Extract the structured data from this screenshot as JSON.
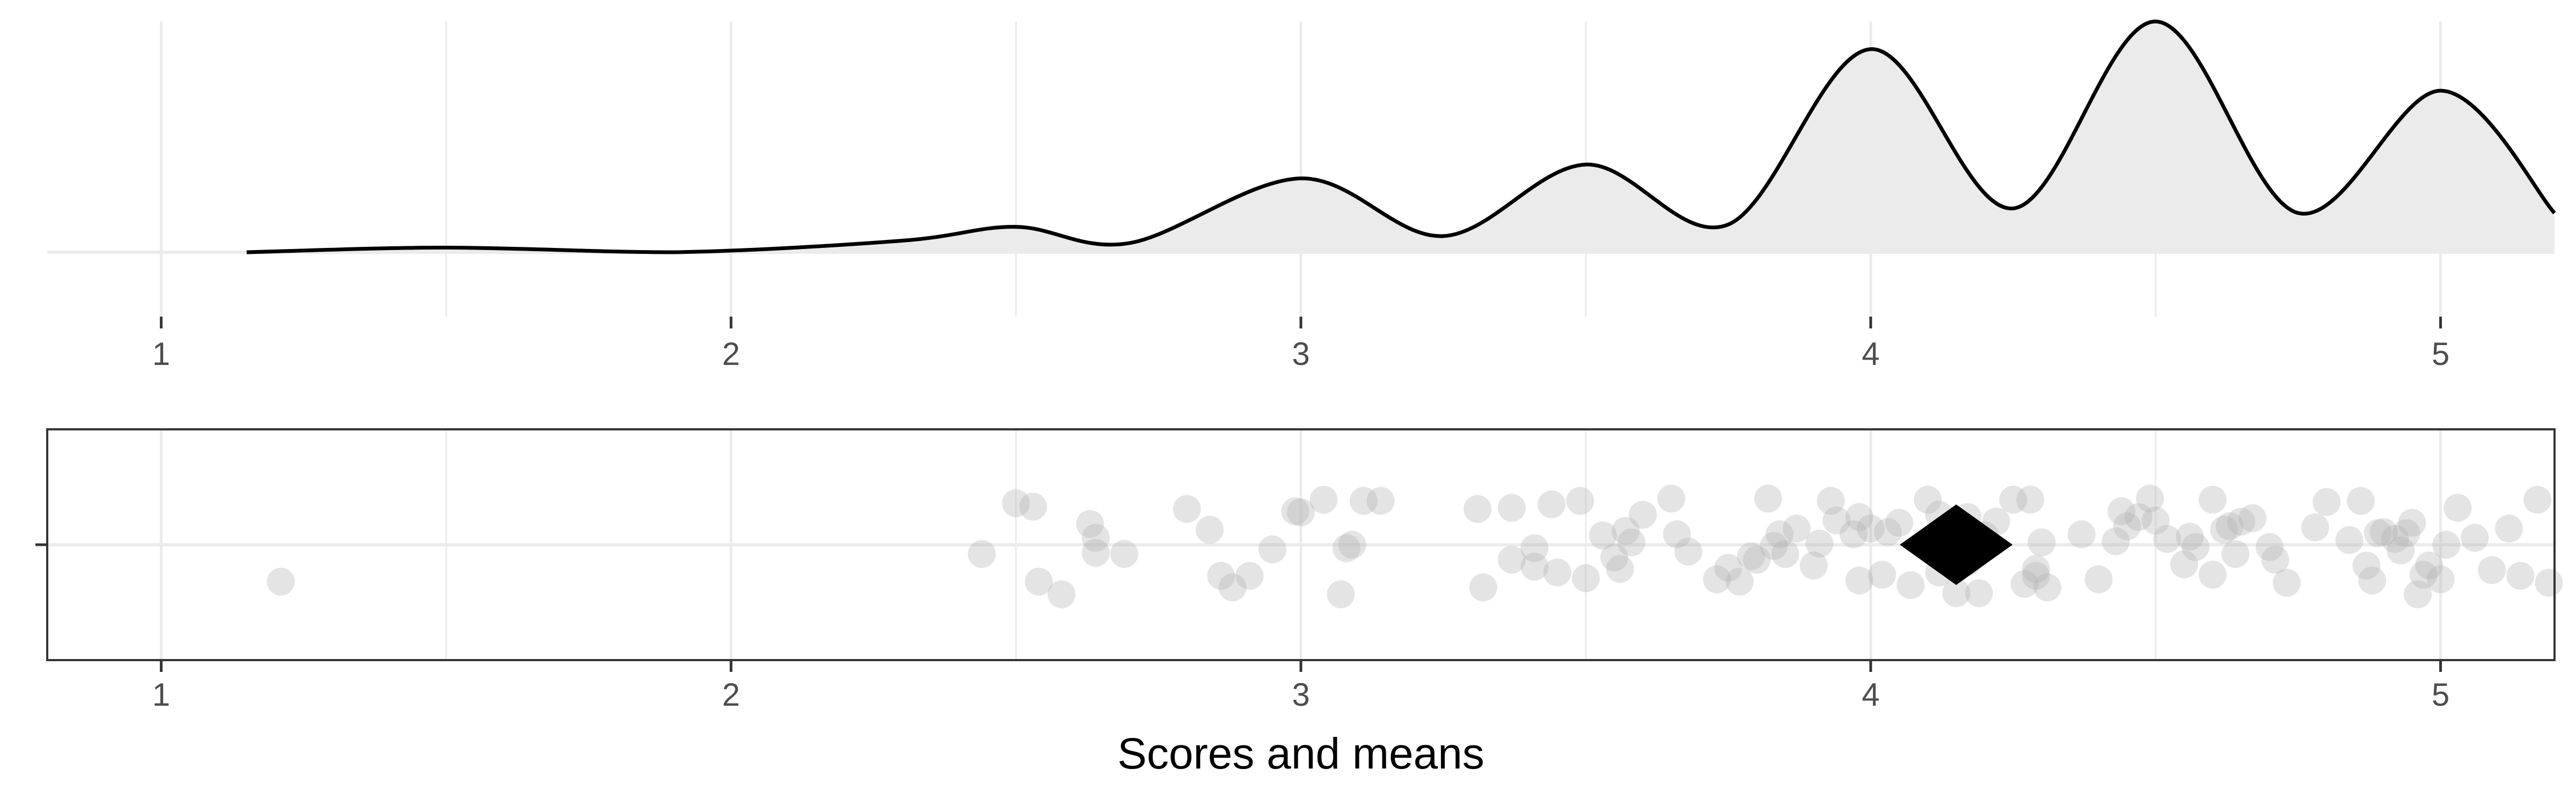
{
  "chart_data": [
    {
      "type": "area",
      "description_kind": "density",
      "xlim": [
        0.8,
        5.2
      ],
      "x_ticks": [
        1,
        2,
        3,
        4,
        5
      ],
      "x_tick_labels": [
        "1",
        "2",
        "3",
        "4",
        "5"
      ],
      "grid": true,
      "density_curve": {
        "x": [
          1.15,
          1.5,
          1.9,
          2.3,
          2.5,
          2.7,
          3.0,
          3.25,
          3.5,
          3.75,
          4.0,
          4.25,
          4.5,
          4.75,
          5.0,
          5.2
        ],
        "y": [
          0.0,
          0.02,
          0.0,
          0.05,
          0.11,
          0.04,
          0.32,
          0.07,
          0.38,
          0.12,
          0.88,
          0.19,
          1.0,
          0.17,
          0.7,
          0.17
        ]
      },
      "fill_color": "#ebebeb",
      "line_color": "#000000"
    },
    {
      "type": "scatter",
      "xlim": [
        0.8,
        5.2
      ],
      "x_ticks": [
        1,
        2,
        3,
        4,
        5
      ],
      "x_tick_labels": [
        "1",
        "2",
        "3",
        "4",
        "5"
      ],
      "xlabel": "Scores and means",
      "grid": true,
      "point_color": "#b3b3b3",
      "x_values": [
        1.21,
        2.44,
        2.5,
        2.54,
        2.53,
        2.58,
        2.63,
        2.64,
        2.64,
        2.69,
        2.8,
        2.84,
        2.86,
        2.88,
        2.91,
        2.95,
        2.99,
        3.0,
        3.04,
        3.07,
        3.08,
        3.09,
        3.11,
        3.14,
        3.31,
        3.32,
        3.37,
        3.37,
        3.41,
        3.41,
        3.44,
        3.45,
        3.49,
        3.5,
        3.53,
        3.55,
        3.56,
        3.57,
        3.58,
        3.6,
        3.65,
        3.66,
        3.68,
        3.73,
        3.75,
        3.77,
        3.79,
        3.8,
        3.82,
        3.83,
        3.84,
        3.85,
        3.87,
        3.9,
        3.91,
        3.93,
        3.94,
        3.97,
        3.98,
        3.98,
        4.0,
        4.02,
        4.03,
        4.05,
        4.07,
        4.1,
        4.12,
        4.12,
        4.14,
        4.15,
        4.17,
        4.17,
        4.19,
        4.2,
        4.22,
        4.25,
        4.27,
        4.28,
        4.29,
        4.29,
        4.3,
        4.31,
        4.37,
        4.4,
        4.43,
        4.44,
        4.45,
        4.47,
        4.49,
        4.5,
        4.52,
        4.55,
        4.56,
        4.57,
        4.6,
        4.6,
        4.62,
        4.63,
        4.64,
        4.65,
        4.67,
        4.7,
        4.71,
        4.73,
        4.78,
        4.8,
        4.84,
        4.86,
        4.87,
        4.88,
        4.89,
        4.9,
        4.92,
        4.93,
        4.94,
        4.95,
        4.96,
        4.97,
        4.98,
        5.0,
        5.01,
        5.03,
        5.06,
        5.09,
        5.12,
        5.14,
        5.17,
        5.19
      ],
      "y_jitter": [
        -0.32,
        -0.08,
        0.36,
        -0.32,
        0.33,
        -0.43,
        0.18,
        0.06,
        -0.07,
        -0.08,
        0.31,
        0.13,
        -0.27,
        -0.37,
        -0.27,
        -0.04,
        0.29,
        0.28,
        0.39,
        -0.43,
        -0.03,
        0.0,
        0.38,
        0.38,
        0.31,
        -0.37,
        0.32,
        -0.13,
        -0.03,
        -0.19,
        0.35,
        -0.24,
        0.38,
        -0.29,
        0.08,
        -0.11,
        -0.21,
        0.12,
        0.02,
        0.26,
        0.4,
        0.09,
        -0.06,
        -0.3,
        -0.2,
        -0.32,
        -0.1,
        -0.13,
        0.4,
        -0.01,
        0.09,
        -0.08,
        0.14,
        -0.18,
        0.01,
        0.38,
        0.21,
        0.09,
        -0.31,
        0.24,
        0.14,
        -0.26,
        0.11,
        0.19,
        -0.35,
        0.39,
        -0.24,
        0.26,
        0.15,
        -0.42,
        0.24,
        -0.15,
        -0.42,
        0.08,
        0.2,
        0.39,
        -0.34,
        0.39,
        -0.27,
        -0.21,
        0.02,
        -0.37,
        0.09,
        -0.3,
        0.03,
        0.29,
        0.16,
        0.24,
        0.4,
        0.21,
        0.05,
        -0.17,
        0.07,
        -0.02,
        0.39,
        -0.26,
        0.13,
        0.16,
        -0.08,
        0.2,
        0.23,
        -0.02,
        -0.13,
        -0.33,
        0.15,
        0.37,
        0.04,
        0.38,
        -0.18,
        -0.31,
        0.1,
        0.11,
        0.05,
        -0.05,
        0.1,
        0.19,
        -0.43,
        -0.26,
        -0.18,
        -0.3,
        0.0,
        0.32,
        0.06,
        -0.22,
        0.14,
        -0.27,
        0.39,
        -0.33
      ],
      "mean": 4.15,
      "mean_marker": "diamond",
      "mean_color": "#000000"
    }
  ]
}
